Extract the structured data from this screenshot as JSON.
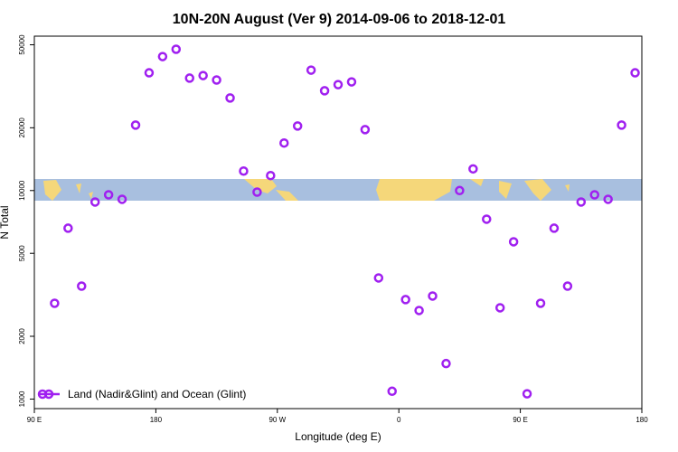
{
  "chart_data": {
    "type": "scatter",
    "title": "10N-20N August (Ver 9)   2014-09-06 to 2018-12-01",
    "xlabel": "Longitude (deg E)",
    "ylabel": "N Total",
    "log_y": true,
    "xlim": [
      90,
      540
    ],
    "xticks": [
      {
        "value": 90,
        "label": "90 E"
      },
      180,
      {
        "value": 270,
        "label": "90 W"
      },
      {
        "value": 360,
        "label": "0"
      },
      {
        "value": 450,
        "label": "90 E"
      },
      {
        "value": 540,
        "label": "180"
      }
    ],
    "ylim": [
      900,
      55000
    ],
    "yticks": [
      1000,
      2000,
      5000,
      10000,
      20000,
      50000
    ],
    "legend": "bottom-left",
    "x": [
      105,
      115,
      125,
      135,
      145,
      155,
      165,
      175,
      185,
      195,
      205,
      215,
      225,
      235,
      245,
      255,
      265,
      275,
      285,
      295,
      305,
      315,
      325,
      335,
      345,
      355,
      365,
      375,
      385,
      395,
      405,
      415,
      425,
      435,
      445,
      455,
      465,
      475,
      485,
      495,
      505,
      515,
      525,
      535
    ],
    "series": [
      {
        "name": "Land (Nadir&Glint) and Ocean (Glint)",
        "color": "#a020f0",
        "values": [
          2880,
          6600,
          3480,
          8810,
          9540,
          9080,
          20600,
          36700,
          43900,
          47600,
          34600,
          35600,
          33900,
          27800,
          12400,
          9830,
          11800,
          16900,
          20400,
          37800,
          30100,
          32200,
          33200,
          19600,
          3810,
          1090,
          3000,
          2660,
          3120,
          1480,
          10000,
          12700,
          7290,
          2740,
          5680,
          1060,
          2880,
          6600,
          3480,
          8810,
          9540,
          9080,
          20600,
          36700
        ]
      }
    ]
  }
}
